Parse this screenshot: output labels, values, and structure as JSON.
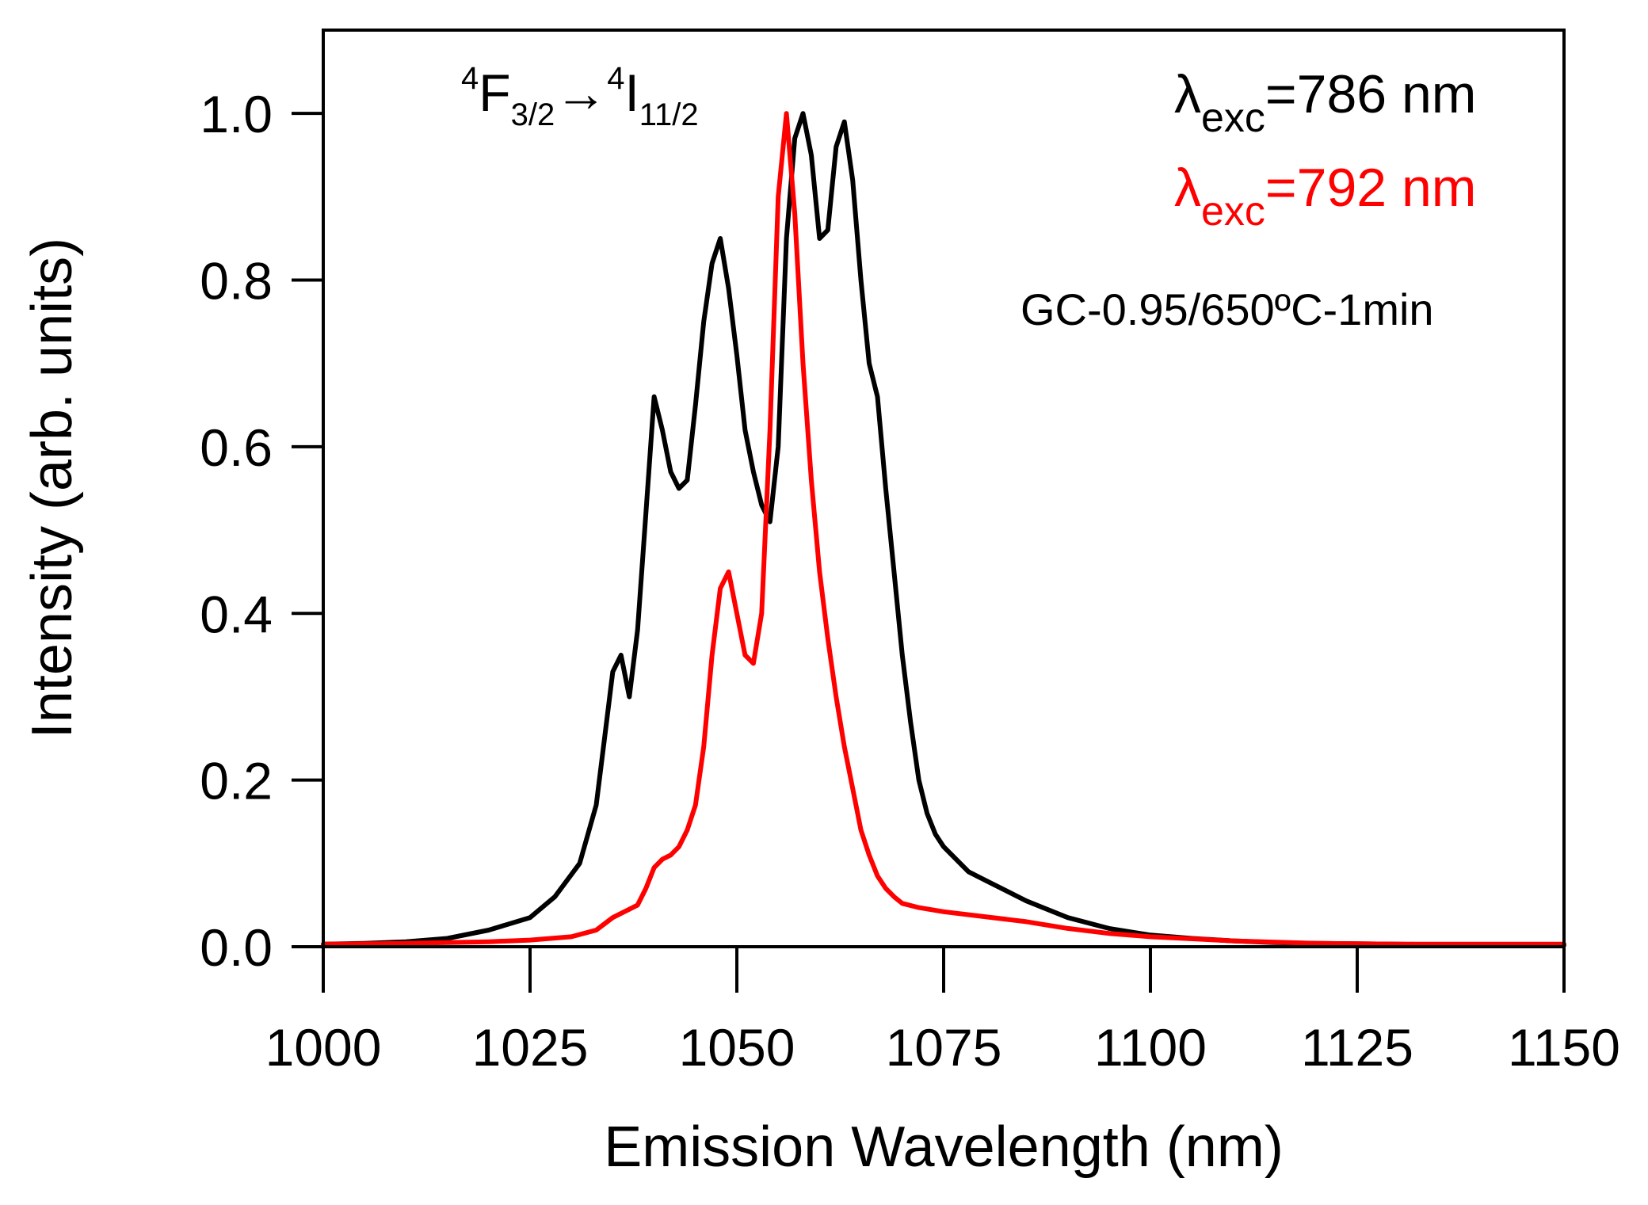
{
  "chart_data": {
    "type": "line",
    "xlabel": "Emission Wavelength (nm)",
    "ylabel": "Intensity (arb. units)",
    "xlim": [
      1000,
      1150
    ],
    "ylim": [
      0,
      1.1
    ],
    "xticks": [
      1000,
      1025,
      1050,
      1075,
      1100,
      1125,
      1150
    ],
    "yticks": [
      0.0,
      0.2,
      0.4,
      0.6,
      0.8,
      1.0
    ],
    "ytick_labels": [
      "0.0",
      "0.2",
      "0.4",
      "0.6",
      "0.8",
      "1.0"
    ],
    "transition_label": {
      "upper_sup": "4",
      "upper_base": "F",
      "upper_sub": "3/2",
      "arrow": "→",
      "lower_sup": "4",
      "lower_base": "I",
      "lower_sub": "11/2"
    },
    "sample_label": "GC-0.95/650ºC-1min",
    "series": [
      {
        "name": "λexc=786 nm",
        "legend_symbol": "λ",
        "legend_sub": "exc",
        "legend_value": "=786 nm",
        "color": "#000000",
        "x": [
          1000,
          1005,
          1010,
          1015,
          1020,
          1025,
          1028,
          1031,
          1033,
          1034,
          1035,
          1036,
          1037,
          1038,
          1039,
          1040,
          1041,
          1042,
          1043,
          1044,
          1045,
          1046,
          1047,
          1048,
          1049,
          1050,
          1051,
          1052,
          1053,
          1054,
          1055,
          1056,
          1057,
          1058,
          1059,
          1060,
          1061,
          1062,
          1063,
          1064,
          1065,
          1066,
          1067,
          1068,
          1069,
          1070,
          1071,
          1072,
          1073,
          1074,
          1075,
          1078,
          1080,
          1085,
          1090,
          1095,
          1100,
          1105,
          1110,
          1115,
          1120,
          1130,
          1140,
          1150
        ],
        "y": [
          0.003,
          0.004,
          0.006,
          0.01,
          0.02,
          0.035,
          0.06,
          0.1,
          0.17,
          0.25,
          0.33,
          0.35,
          0.3,
          0.38,
          0.52,
          0.66,
          0.62,
          0.57,
          0.55,
          0.56,
          0.65,
          0.75,
          0.82,
          0.85,
          0.79,
          0.71,
          0.62,
          0.57,
          0.53,
          0.51,
          0.6,
          0.85,
          0.97,
          1.0,
          0.95,
          0.85,
          0.86,
          0.96,
          0.99,
          0.92,
          0.8,
          0.7,
          0.66,
          0.55,
          0.45,
          0.35,
          0.27,
          0.2,
          0.16,
          0.135,
          0.12,
          0.09,
          0.08,
          0.055,
          0.035,
          0.022,
          0.014,
          0.01,
          0.007,
          0.005,
          0.004,
          0.003,
          0.002,
          0.002
        ]
      },
      {
        "name": "λexc=792 nm",
        "legend_symbol": "λ",
        "legend_sub": "exc",
        "legend_value": "=792 nm",
        "color": "#ff0000",
        "x": [
          1000,
          1010,
          1020,
          1025,
          1030,
          1033,
          1035,
          1037,
          1038,
          1039,
          1040,
          1041,
          1042,
          1043,
          1044,
          1045,
          1046,
          1047,
          1048,
          1049,
          1050,
          1051,
          1052,
          1053,
          1054,
          1055,
          1056,
          1057,
          1058,
          1059,
          1060,
          1061,
          1062,
          1063,
          1064,
          1065,
          1066,
          1067,
          1068,
          1069,
          1070,
          1072,
          1075,
          1080,
          1085,
          1090,
          1095,
          1100,
          1110,
          1120,
          1130,
          1150
        ],
        "y": [
          0.003,
          0.004,
          0.006,
          0.008,
          0.012,
          0.02,
          0.035,
          0.045,
          0.05,
          0.07,
          0.095,
          0.105,
          0.11,
          0.12,
          0.14,
          0.17,
          0.24,
          0.35,
          0.43,
          0.45,
          0.4,
          0.35,
          0.34,
          0.4,
          0.62,
          0.9,
          1.0,
          0.88,
          0.7,
          0.56,
          0.45,
          0.37,
          0.3,
          0.24,
          0.19,
          0.14,
          0.11,
          0.085,
          0.07,
          0.06,
          0.052,
          0.047,
          0.042,
          0.036,
          0.03,
          0.022,
          0.016,
          0.012,
          0.007,
          0.004,
          0.003,
          0.003
        ]
      }
    ]
  }
}
